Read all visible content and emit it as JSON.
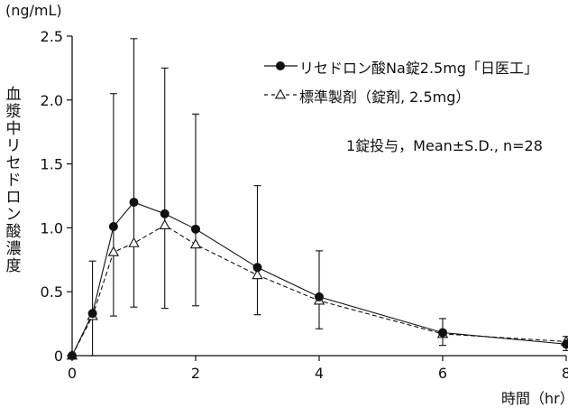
{
  "chart_data": {
    "type": "line",
    "y_unit": "(ng/mL)",
    "ylabel": "血漿中リセドロン酸濃度",
    "xlabel": "時間（hr）",
    "note": "1錠投与，Mean±S.D., n=28",
    "xlim": [
      0,
      8
    ],
    "ylim": [
      0,
      2.5
    ],
    "x_ticks": [
      0,
      2,
      4,
      6,
      8
    ],
    "x_tick_labels": [
      "0",
      "2",
      "4",
      "6",
      "8"
    ],
    "y_ticks": [
      0,
      0.5,
      1.0,
      1.5,
      2.0,
      2.5
    ],
    "y_tick_labels": [
      "0",
      "0.5",
      "1.0",
      "1.5",
      "2.0",
      "2.5"
    ],
    "legend_position": "top-right",
    "series": [
      {
        "name": "リセドロン酸Na錠2.5mg「日医工」",
        "marker": "filled-circle",
        "line": "solid",
        "x": [
          0,
          0.33,
          0.67,
          1,
          1.5,
          2,
          3,
          4,
          6,
          8
        ],
        "y": [
          0,
          0.33,
          1.01,
          1.2,
          1.11,
          0.99,
          0.69,
          0.46,
          0.18,
          0.09
        ],
        "sd_upper": [
          0,
          0.74,
          2.05,
          2.48,
          2.25,
          1.89,
          1.33,
          0.82,
          0.29,
          0.15
        ],
        "sd_lower": [
          0,
          0,
          0.31,
          0.38,
          0.37,
          0.39,
          0.32,
          0.21,
          0.08,
          0.04
        ]
      },
      {
        "name": "標準製剤（錠剤, 2.5mg）",
        "marker": "open-triangle",
        "line": "dashed",
        "x": [
          0,
          0.33,
          0.67,
          1,
          1.5,
          2,
          3,
          4,
          6,
          8
        ],
        "y": [
          0,
          0.31,
          0.81,
          0.88,
          1.02,
          0.87,
          0.63,
          0.43,
          0.17,
          0.11
        ]
      }
    ]
  }
}
